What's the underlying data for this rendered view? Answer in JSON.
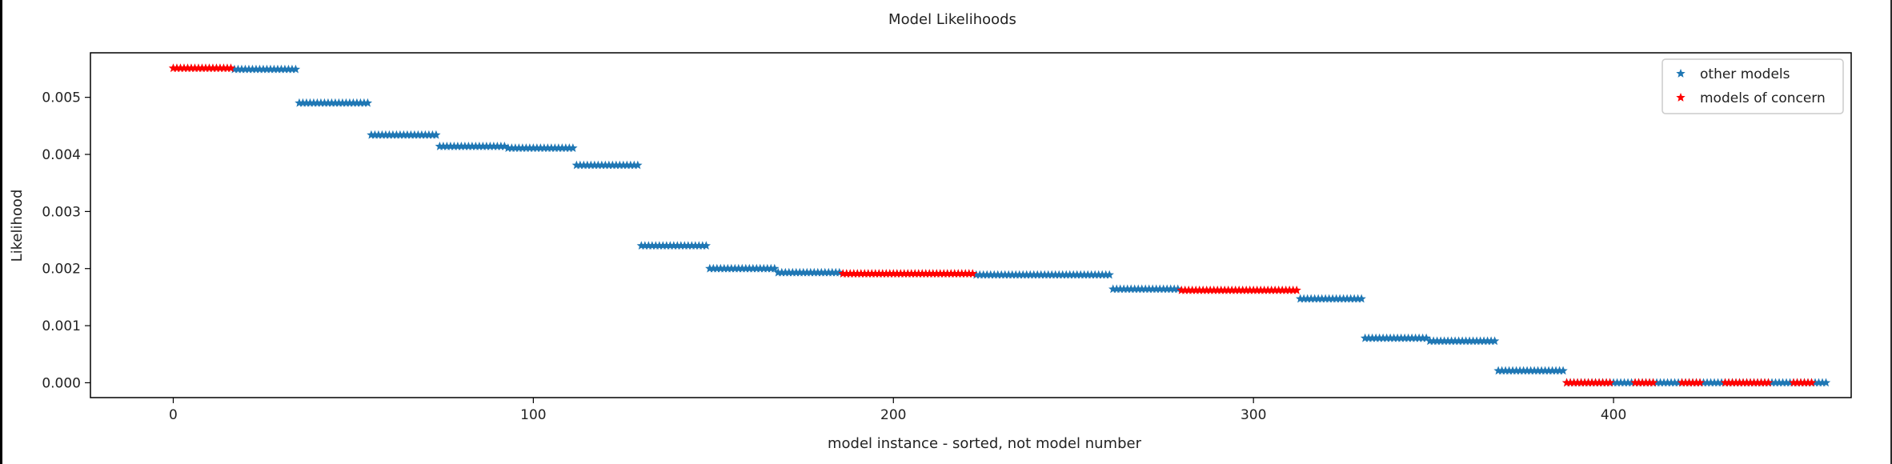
{
  "chart_data": {
    "type": "scatter",
    "title": "Model Likelihoods",
    "xlabel": "model instance - sorted, not model number",
    "ylabel": "Likelihood",
    "xlim": [
      -23,
      466
    ],
    "ylim": [
      -0.00026,
      0.00578
    ],
    "xticks": [
      0,
      100,
      200,
      300,
      400
    ],
    "xtick_labels": [
      "0",
      "100",
      "200",
      "300",
      "400"
    ],
    "yticks": [
      0.0,
      0.001,
      0.002,
      0.003,
      0.004,
      0.005
    ],
    "ytick_labels": [
      "0.000",
      "0.001",
      "0.002",
      "0.003",
      "0.004",
      "0.005"
    ],
    "grid": false,
    "legend": "top-right",
    "marker": "star",
    "series": [
      {
        "name": "other models",
        "color": "#1f77b4",
        "segments": [
          {
            "x_start": 17,
            "x_end": 35,
            "y": 0.00549
          },
          {
            "x_start": 35,
            "x_end": 55,
            "y": 0.0049
          },
          {
            "x_start": 55,
            "x_end": 74,
            "y": 0.00434
          },
          {
            "x_start": 74,
            "x_end": 93,
            "y": 0.00414
          },
          {
            "x_start": 93,
            "x_end": 112,
            "y": 0.00411
          },
          {
            "x_start": 112,
            "x_end": 130,
            "y": 0.00381
          },
          {
            "x_start": 130,
            "x_end": 149,
            "y": 0.0024
          },
          {
            "x_start": 149,
            "x_end": 168,
            "y": 0.002
          },
          {
            "x_start": 168,
            "x_end": 186,
            "y": 0.00193
          },
          {
            "x_start": 223,
            "x_end": 261,
            "y": 0.00189
          },
          {
            "x_start": 261,
            "x_end": 280,
            "y": 0.00164
          },
          {
            "x_start": 313,
            "x_end": 331,
            "y": 0.00147
          },
          {
            "x_start": 331,
            "x_end": 349,
            "y": 0.00078
          },
          {
            "x_start": 349,
            "x_end": 368,
            "y": 0.00073
          },
          {
            "x_start": 368,
            "x_end": 387,
            "y": 0.00021
          },
          {
            "x_start": 387,
            "x_end": 460,
            "y": 0.0
          }
        ]
      },
      {
        "name": "models of concern",
        "color": "#ff0000",
        "segments": [
          {
            "x_start": 0,
            "x_end": 17,
            "y": 0.00551
          },
          {
            "x_start": 186,
            "x_end": 223,
            "y": 0.00191
          },
          {
            "x_start": 280,
            "x_end": 313,
            "y": 0.00162
          },
          {
            "x_start": 387,
            "x_end": 400,
            "y": 0.0
          },
          {
            "x_start": 406,
            "x_end": 412,
            "y": 0.0
          },
          {
            "x_start": 419,
            "x_end": 425,
            "y": 0.0
          },
          {
            "x_start": 431,
            "x_end": 444,
            "y": 0.0
          },
          {
            "x_start": 450,
            "x_end": 456,
            "y": 0.0
          }
        ]
      }
    ]
  }
}
